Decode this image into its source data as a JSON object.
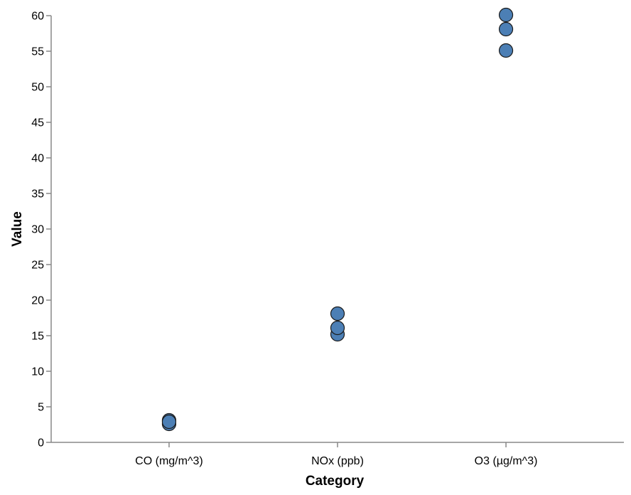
{
  "chart_data": {
    "type": "scatter",
    "title": "",
    "xlabel": "Category",
    "ylabel": "Value",
    "categories": [
      "CO (mg/m^3)",
      "NOx (ppb)",
      "O3 (µg/m^3)"
    ],
    "points": [
      {
        "category": "CO (mg/m^3)",
        "y": 3.1
      },
      {
        "category": "CO (mg/m^3)",
        "y": 2.6
      },
      {
        "category": "CO (mg/m^3)",
        "y": 2.9
      },
      {
        "category": "NOx (ppb)",
        "y": 15.2
      },
      {
        "category": "NOx (ppb)",
        "y": 16.1
      },
      {
        "category": "NOx (ppb)",
        "y": 18.1
      },
      {
        "category": "O3 (µg/m^3)",
        "y": 55.1
      },
      {
        "category": "O3 (µg/m^3)",
        "y": 58.1
      },
      {
        "category": "O3 (µg/m^3)",
        "y": 60.1
      }
    ],
    "ylim": [
      0,
      60
    ],
    "yticks": [
      0,
      5,
      10,
      15,
      20,
      25,
      30,
      35,
      40,
      45,
      50,
      55,
      60
    ],
    "grid": false,
    "point_color": "#4c7fb5",
    "point_stroke": "#1a1a1a",
    "axis_color": "#888888"
  }
}
